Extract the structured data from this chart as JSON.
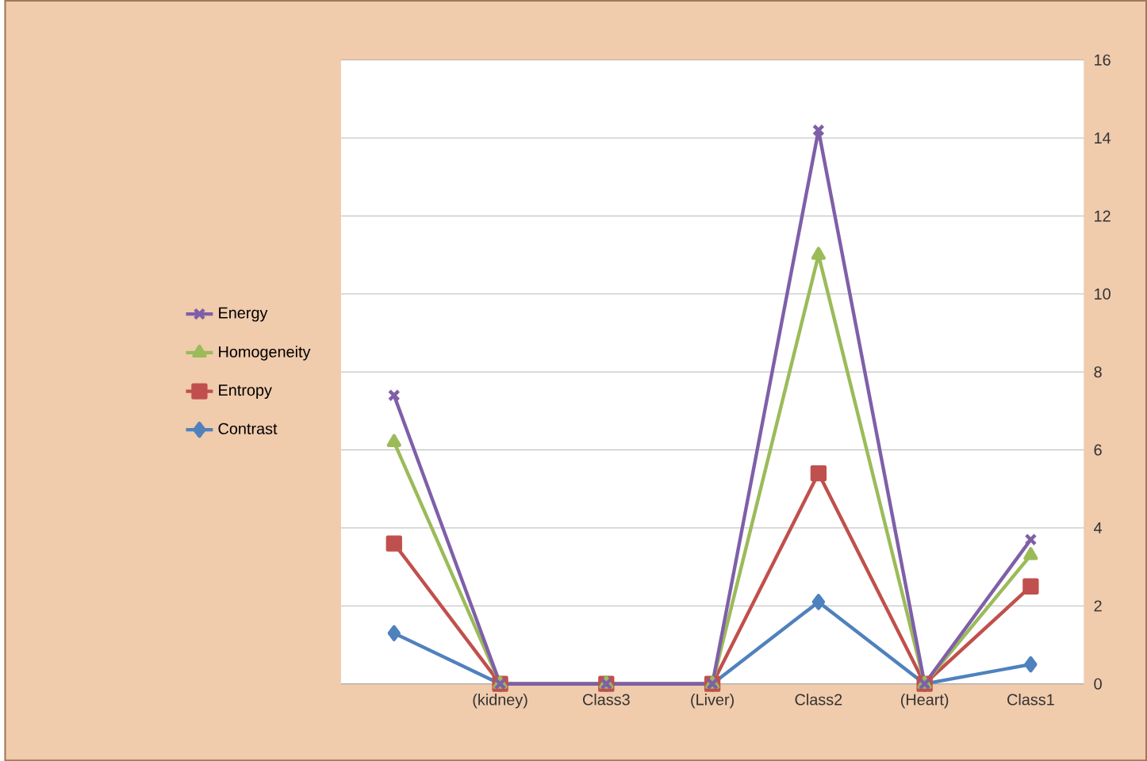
{
  "chart_data": {
    "type": "line",
    "categories": [
      null,
      "(kidney)",
      "Class3",
      "(Liver)",
      "Class2",
      "(Heart)",
      "Class1"
    ],
    "series": [
      {
        "name": "Contrast",
        "color": "#4f81bd",
        "marker": "diamond",
        "values": [
          1.3,
          0,
          0,
          0,
          2.1,
          0,
          0.5
        ]
      },
      {
        "name": "Entropy",
        "color": "#c0504d",
        "marker": "square",
        "values": [
          3.6,
          0,
          0,
          0,
          5.4,
          0,
          2.5
        ]
      },
      {
        "name": "Homogeneity",
        "color": "#9bbb59",
        "marker": "triangle",
        "values": [
          6.2,
          0,
          0,
          0,
          11.0,
          0,
          3.3
        ]
      },
      {
        "name": "Energy",
        "color": "#7f5fa8",
        "marker": "cross",
        "values": [
          7.4,
          0,
          0,
          0,
          14.2,
          0,
          3.7
        ]
      }
    ],
    "ylim": [
      0,
      16
    ],
    "yticks": [
      0,
      2,
      4,
      6,
      8,
      10,
      12,
      14,
      16
    ],
    "grid": "y",
    "legend": "left",
    "line_style": "solid"
  }
}
